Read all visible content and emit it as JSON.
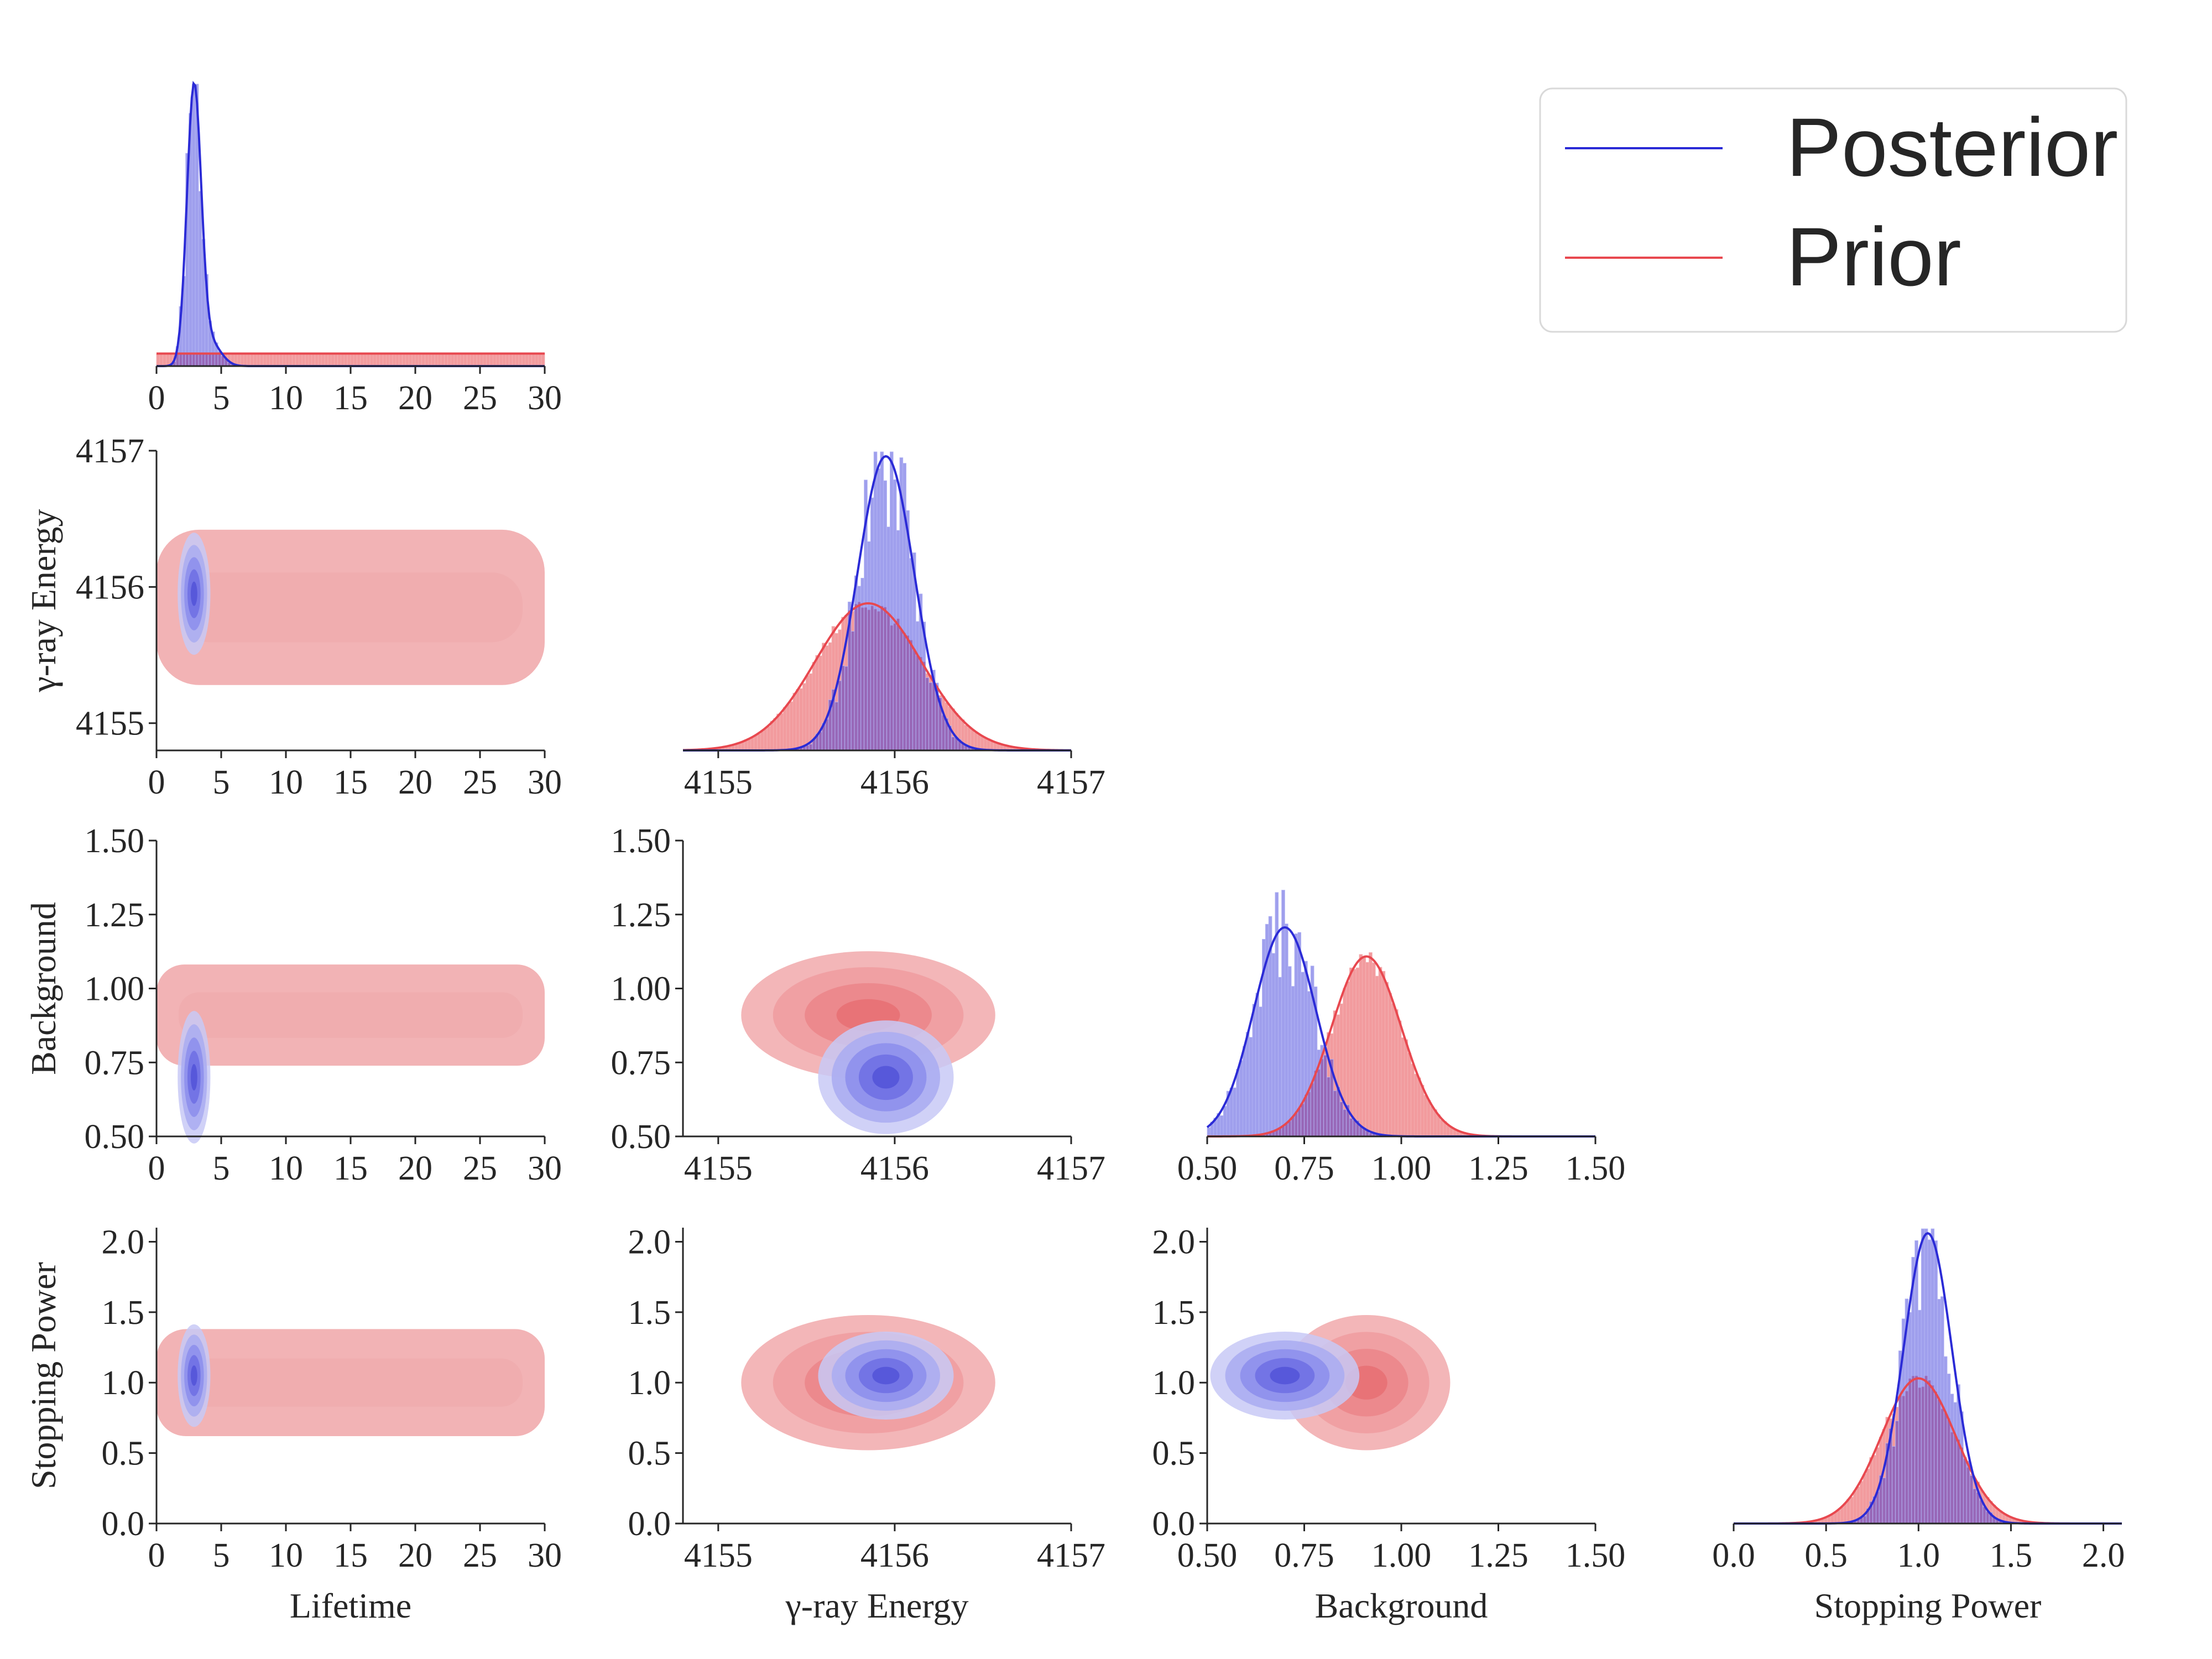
{
  "chart_data": {
    "type": "corner-plot",
    "legend": {
      "placement": "top-right",
      "items": [
        {
          "label": "Posterior",
          "color": "#2b2bd6"
        },
        {
          "label": "Prior",
          "color": "#e8484f"
        }
      ]
    },
    "colors": {
      "posterior": "#2b2bd6",
      "prior": "#e8484f",
      "posterior_fill": "#9a9cf0",
      "prior_fill": "#f2a8aa"
    },
    "parameters": [
      {
        "id": "lifetime",
        "label": "Lifetime",
        "range": [
          0,
          30
        ],
        "ticks": [
          "0",
          "5",
          "10",
          "15",
          "20",
          "25",
          "30"
        ],
        "tick_values": [
          0,
          5,
          10,
          15,
          20,
          25,
          30
        ]
      },
      {
        "id": "energy",
        "label": "γ-ray Energy",
        "range": [
          4154.8,
          4157
        ],
        "ticks": [
          "4155",
          "4156",
          "4157"
        ],
        "tick_values": [
          4155,
          4156,
          4157
        ]
      },
      {
        "id": "background",
        "label": "Background",
        "range": [
          0.5,
          1.5
        ],
        "ticks": [
          "0.50",
          "0.75",
          "1.00",
          "1.25",
          "1.50"
        ],
        "tick_values": [
          0.5,
          0.75,
          1.0,
          1.25,
          1.5
        ]
      },
      {
        "id": "stopping",
        "label": "Stopping Power",
        "range": [
          0,
          2.1
        ],
        "ticks": [
          "0.0",
          "0.5",
          "1.0",
          "1.5",
          "2.0"
        ],
        "tick_values": [
          0,
          0.5,
          1.0,
          1.5,
          2.0
        ]
      }
    ],
    "posterior": {
      "lifetime": {
        "mean": 2.9,
        "sd": 0.55
      },
      "energy": {
        "mean": 4155.95,
        "sd": 0.16
      },
      "background": {
        "mean": 0.7,
        "sd": 0.08
      },
      "stopping": {
        "mean": 1.05,
        "sd": 0.13
      }
    },
    "prior": {
      "lifetime": {
        "low": 0,
        "high": 30
      },
      "energy": {
        "mean": 4155.85,
        "sd": 0.3
      },
      "background": {
        "mean": 0.91,
        "sd": 0.09
      },
      "stopping": {
        "mean": 1.0,
        "sd": 0.2
      }
    }
  }
}
